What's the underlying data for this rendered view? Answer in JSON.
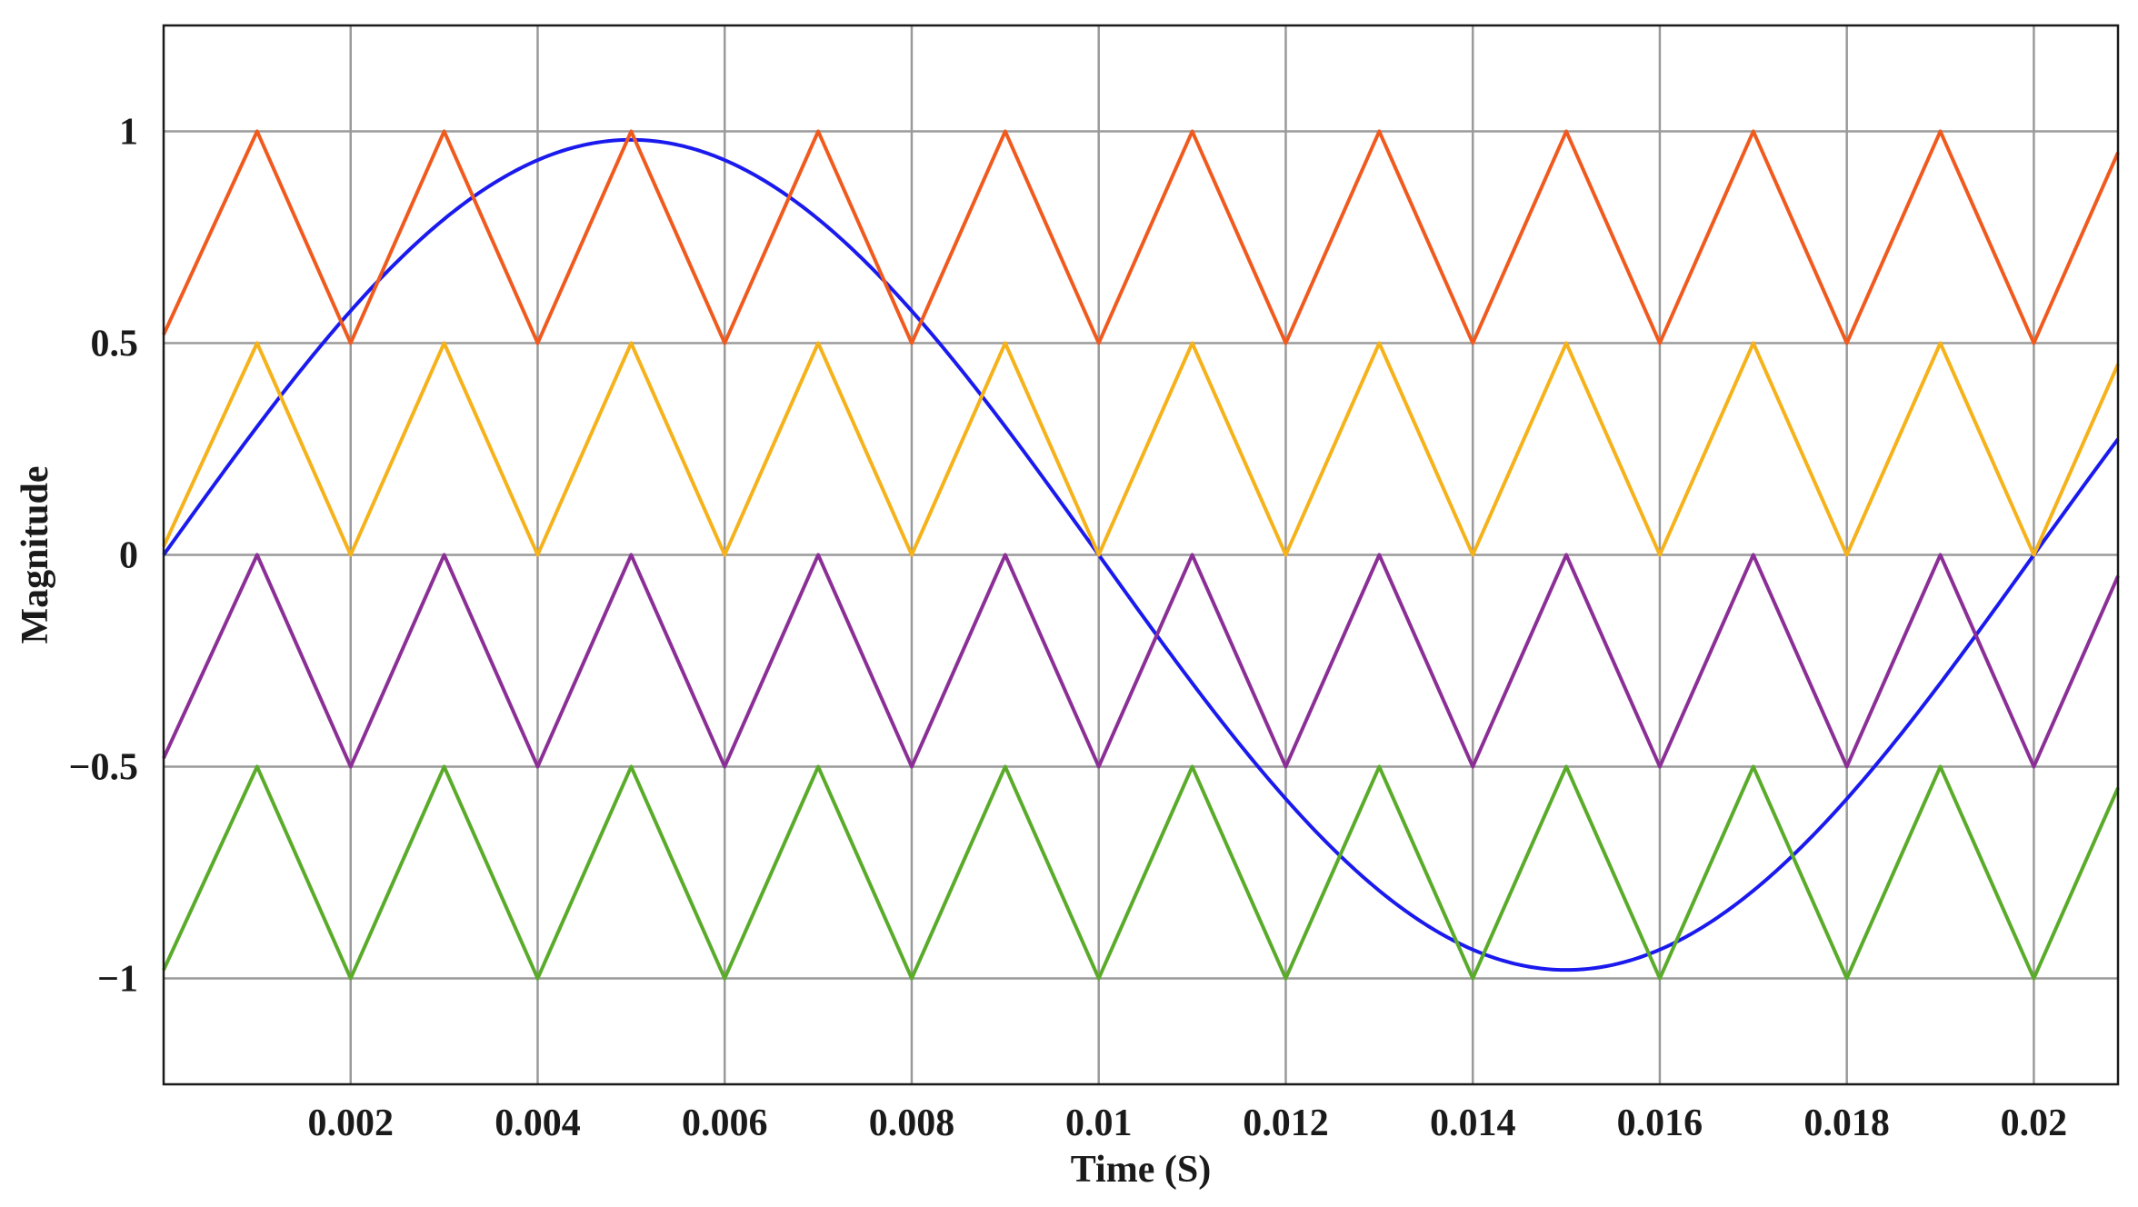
{
  "chart_data": {
    "type": "line",
    "xlabel": "Time (S)",
    "ylabel": "Magnitude",
    "xlim": [
      0,
      0.0209
    ],
    "ylim": [
      -1.25,
      1.25
    ],
    "grid": true,
    "x_ticks": [
      0.002,
      0.004,
      0.006,
      0.008,
      0.01,
      0.012,
      0.014,
      0.016,
      0.018,
      0.02
    ],
    "x_tick_labels": [
      "0.002",
      "0.004",
      "0.006",
      "0.008",
      "0.01",
      "0.012",
      "0.014",
      "0.016",
      "0.018",
      "0.02"
    ],
    "y_ticks": [
      1,
      0.5,
      0,
      -0.5,
      -1
    ],
    "y_tick_labels": [
      "1",
      "0.5",
      "0",
      "−0.5",
      "−1"
    ],
    "series": [
      {
        "kind": "sine",
        "color": "#1a1aee",
        "amplitude": 0.98,
        "frequency_hz": 50,
        "x_range": [
          0,
          0.0209
        ]
      },
      {
        "kind": "triangle",
        "color": "#f05a1e",
        "x": [
          0,
          0.001,
          0.002,
          0.003,
          0.004,
          0.005,
          0.006,
          0.007,
          0.008,
          0.009,
          0.01,
          0.011,
          0.012,
          0.013,
          0.014,
          0.015,
          0.016,
          0.017,
          0.018,
          0.019,
          0.02,
          0.0209
        ],
        "y": [
          0.52,
          1,
          0.5,
          1,
          0.5,
          1,
          0.5,
          1,
          0.5,
          1,
          0.5,
          1,
          0.5,
          1,
          0.5,
          1,
          0.5,
          1,
          0.5,
          1,
          0.5,
          0.95
        ]
      },
      {
        "kind": "triangle",
        "color": "#f5b21a",
        "x": [
          0,
          0.001,
          0.002,
          0.003,
          0.004,
          0.005,
          0.006,
          0.007,
          0.008,
          0.009,
          0.01,
          0.011,
          0.012,
          0.013,
          0.014,
          0.015,
          0.016,
          0.017,
          0.018,
          0.019,
          0.02,
          0.0209
        ],
        "y": [
          0.02,
          0.5,
          0,
          0.5,
          0,
          0.5,
          0,
          0.5,
          0,
          0.5,
          0,
          0.5,
          0,
          0.5,
          0,
          0.5,
          0,
          0.5,
          0,
          0.5,
          0,
          0.45
        ]
      },
      {
        "kind": "triangle",
        "color": "#8b2f97",
        "x": [
          0,
          0.001,
          0.002,
          0.003,
          0.004,
          0.005,
          0.006,
          0.007,
          0.008,
          0.009,
          0.01,
          0.011,
          0.012,
          0.013,
          0.014,
          0.015,
          0.016,
          0.017,
          0.018,
          0.019,
          0.02,
          0.0209
        ],
        "y": [
          -0.48,
          0,
          -0.5,
          0,
          -0.5,
          0,
          -0.5,
          0,
          -0.5,
          0,
          -0.5,
          0,
          -0.5,
          0,
          -0.5,
          0,
          -0.5,
          0,
          -0.5,
          0,
          -0.5,
          -0.05
        ]
      },
      {
        "kind": "triangle",
        "color": "#5aab2a",
        "x": [
          0,
          0.001,
          0.002,
          0.003,
          0.004,
          0.005,
          0.006,
          0.007,
          0.008,
          0.009,
          0.01,
          0.011,
          0.012,
          0.013,
          0.014,
          0.015,
          0.016,
          0.017,
          0.018,
          0.019,
          0.02,
          0.0209
        ],
        "y": [
          -0.98,
          -0.5,
          -1,
          -0.5,
          -1,
          -0.5,
          -1,
          -0.5,
          -1,
          -0.5,
          -1,
          -0.5,
          -1,
          -0.5,
          -1,
          -0.5,
          -1,
          -0.5,
          -1,
          -0.5,
          -1,
          -0.55
        ]
      }
    ]
  }
}
